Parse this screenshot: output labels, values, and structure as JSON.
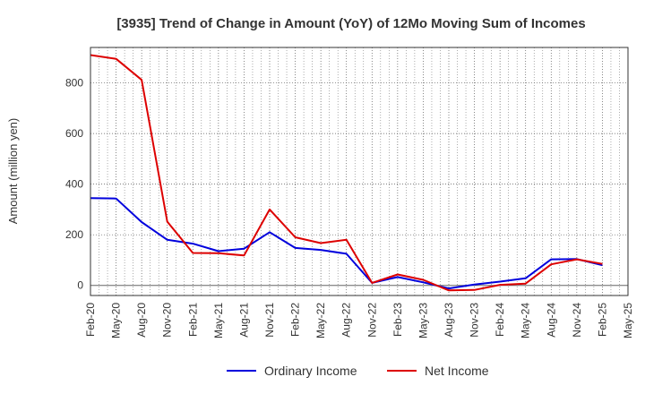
{
  "chart_data": {
    "type": "line",
    "title": "[3935]  Trend of Change in Amount (YoY) of 12Mo Moving Sum of Incomes",
    "ylabel": "Amount (million yen)",
    "xlabel": "",
    "ylim": [
      -40,
      940
    ],
    "yticks": [
      0,
      200,
      400,
      600,
      800
    ],
    "x": [
      "Feb-20",
      "May-20",
      "Aug-20",
      "Nov-20",
      "Feb-21",
      "May-21",
      "Aug-21",
      "Nov-21",
      "Feb-22",
      "May-22",
      "Aug-22",
      "Nov-22",
      "Feb-23",
      "May-23",
      "Aug-23",
      "Nov-23",
      "Feb-24",
      "May-24",
      "Aug-24",
      "Nov-24",
      "Feb-25",
      "May-25"
    ],
    "series": [
      {
        "name": "Ordinary Income",
        "color": "#0000dd",
        "values": [
          345,
          343,
          250,
          180,
          165,
          135,
          145,
          210,
          148,
          140,
          125,
          10,
          33,
          12,
          -12,
          3,
          15,
          28,
          103,
          104,
          80,
          null
        ]
      },
      {
        "name": "Net Income",
        "color": "#dd0000",
        "values": [
          910,
          895,
          812,
          252,
          128,
          127,
          118,
          300,
          190,
          167,
          180,
          10,
          43,
          22,
          -20,
          -18,
          2,
          7,
          83,
          103,
          85,
          null
        ]
      }
    ],
    "grid": true,
    "legend_position": "bottom"
  }
}
